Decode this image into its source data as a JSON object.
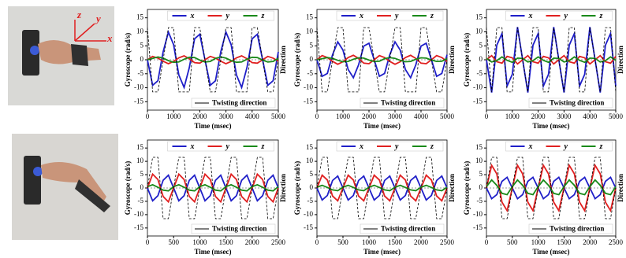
{
  "photo_labels": [
    "z",
    "y",
    "x"
  ],
  "chart_data": [
    {
      "type": "line",
      "xlabel": "Time (msec)",
      "ylabel": "Gyroscope (rad/s)",
      "y2label": "Direction",
      "x": [
        0,
        200,
        400,
        600,
        800,
        1000,
        1200,
        1400,
        1600,
        1800,
        2000,
        2200,
        2400,
        2600,
        2800,
        3000,
        3200,
        3400,
        3600,
        3800,
        4000,
        4200,
        4400,
        4600,
        4800,
        5000
      ],
      "xlim": [
        0,
        5000
      ],
      "xticks": [
        0,
        1000,
        2000,
        3000,
        4000,
        5000
      ],
      "ylim": [
        -18,
        18
      ],
      "yticks": [
        -15,
        -10,
        -5,
        0,
        5,
        10,
        15
      ],
      "series": [
        {
          "name": "x",
          "color": "#1f1fc8",
          "values": [
            0,
            -9.1,
            -7.5,
            2.8,
            9.9,
            5.4,
            -5.4,
            -9.9,
            -2.8,
            7.5,
            9.1,
            0,
            -9.1,
            -7.5,
            2.8,
            9.9,
            5.4,
            -5.4,
            -9.9,
            -2.8,
            7.5,
            9.1,
            0,
            -9.1,
            -7.5,
            2.8
          ]
        },
        {
          "name": "y",
          "color": "#e02020",
          "values": [
            0,
            1.2,
            0.6,
            -0.5,
            -1.4,
            -0.6,
            0.7,
            1.4,
            0.4,
            -1,
            -1.2,
            0,
            1.2,
            0.6,
            -0.5,
            -1.4,
            -0.6,
            0.7,
            1.4,
            0.4,
            -1,
            -1.2,
            0,
            1.2,
            0.6,
            -0.5
          ]
        },
        {
          "name": "z",
          "color": "#1a8a1a",
          "values": [
            0,
            0.5,
            1,
            0.6,
            -0.3,
            -0.9,
            -0.8,
            0.2,
            0.9,
            0.8,
            -0.1,
            -0.8,
            -0.6,
            0.5,
            1,
            0.6,
            -0.3,
            -0.9,
            -0.8,
            0.2,
            0.9,
            0.8,
            -0.1,
            -0.8,
            -0.6,
            0.5
          ]
        },
        {
          "name": "Twisting direction",
          "color": "#000000",
          "dashed": true,
          "values": [
            11.5,
            -11.5,
            -11.5,
            0,
            11.5,
            11.5,
            -11.5,
            -11.5,
            -11.5,
            11.5,
            11.5,
            0,
            -11.5,
            -11.5,
            0,
            11.5,
            11.5,
            -11.5,
            -11.5,
            -11.5,
            11.5,
            11.5,
            0,
            -11.5,
            -11.5,
            0
          ]
        }
      ]
    },
    {
      "type": "line",
      "xlabel": "Time (msec)",
      "ylabel": "Gyroscope (rad/s)",
      "y2label": "Direction",
      "x": [
        0,
        200,
        400,
        600,
        800,
        1000,
        1200,
        1400,
        1600,
        1800,
        2000,
        2200,
        2400,
        2600,
        2800,
        3000,
        3200,
        3400,
        3600,
        3800,
        4000,
        4200,
        4400,
        4600,
        4800,
        5000
      ],
      "xlim": [
        0,
        5000
      ],
      "xticks": [
        0,
        1000,
        2000,
        3000,
        4000,
        5000
      ],
      "ylim": [
        -18,
        18
      ],
      "yticks": [
        -15,
        -10,
        -5,
        0,
        5,
        10,
        15
      ],
      "series": [
        {
          "name": "x",
          "color": "#1f1fc8",
          "values": [
            0,
            -5.9,
            -4.9,
            1.8,
            6.4,
            3.5,
            -3.5,
            -6.4,
            -1.8,
            4.9,
            5.9,
            0,
            -5.9,
            -4.9,
            1.8,
            6.4,
            3.5,
            -3.5,
            -6.4,
            -1.8,
            4.9,
            5.9,
            0,
            -5.9,
            -4.9,
            1.8
          ]
        },
        {
          "name": "y",
          "color": "#e02020",
          "values": [
            0,
            1.5,
            0.8,
            -0.6,
            -1.6,
            -0.7,
            0.8,
            1.6,
            0.5,
            -1.2,
            -1.4,
            0,
            1.5,
            0.8,
            -0.6,
            -1.6,
            -0.7,
            0.8,
            1.6,
            0.5,
            -1.2,
            -1.4,
            0,
            1.5,
            0.8,
            -0.6
          ]
        },
        {
          "name": "z",
          "color": "#1a8a1a",
          "values": [
            0,
            0.4,
            0.8,
            0.5,
            -0.2,
            -0.7,
            -0.6,
            0.2,
            0.7,
            0.6,
            -0.1,
            -0.6,
            -0.5,
            0.4,
            0.8,
            0.5,
            -0.2,
            -0.7,
            -0.6,
            0.2,
            0.7,
            0.6,
            -0.1,
            -0.6,
            -0.5,
            0.4
          ]
        },
        {
          "name": "Twisting direction",
          "color": "#000000",
          "dashed": true,
          "values": [
            11.5,
            -11.5,
            -11.5,
            0,
            11.5,
            11.5,
            -11.5,
            -11.5,
            -11.5,
            11.5,
            11.5,
            0,
            -11.5,
            -11.5,
            0,
            11.5,
            11.5,
            -11.5,
            -11.5,
            -11.5,
            11.5,
            11.5,
            0,
            -11.5,
            -11.5,
            0
          ]
        }
      ]
    },
    {
      "type": "line",
      "xlabel": "Time (msec)",
      "ylabel": "Gyroscope (rad/s)",
      "y2label": "Direction",
      "x": [
        0,
        200,
        400,
        600,
        800,
        1000,
        1200,
        1400,
        1600,
        1800,
        2000,
        2200,
        2400,
        2600,
        2800,
        3000,
        3200,
        3400,
        3600,
        3800,
        4000,
        4200,
        4400,
        4600,
        4800,
        5000
      ],
      "xlim": [
        0,
        5000
      ],
      "xticks": [
        0,
        1000,
        2000,
        3000,
        4000,
        5000
      ],
      "ylim": [
        -18,
        18
      ],
      "yticks": [
        -15,
        -10,
        -5,
        0,
        5,
        10,
        15
      ],
      "series": [
        {
          "name": "x",
          "color": "#1f1fc8",
          "values": [
            0,
            -11.7,
            5.2,
            9.4,
            -9.4,
            -5.2,
            11.7,
            0,
            -11.7,
            5.2,
            9.4,
            -9.4,
            -5.2,
            11.7,
            0,
            -11.7,
            5.2,
            9.4,
            -9.4,
            -5.2,
            11.7,
            0,
            -11.7,
            5.2,
            9.4,
            -9.4
          ]
        },
        {
          "name": "y",
          "color": "#e02020",
          "values": [
            0,
            1.5,
            -0.7,
            -1.2,
            1.2,
            0.7,
            -1.5,
            0,
            1.5,
            -0.7,
            -1.2,
            1.2,
            0.7,
            -1.5,
            0,
            1.5,
            -0.7,
            -1.2,
            1.2,
            0.7,
            -1.5,
            0,
            1.5,
            -0.7,
            -1.2,
            1.2
          ]
        },
        {
          "name": "z",
          "color": "#1a8a1a",
          "values": [
            0.5,
            -0.8,
            -0.3,
            1,
            -0.2,
            -0.9,
            0.6,
            0.5,
            -0.8,
            -0.3,
            1,
            -0.2,
            -0.9,
            0.6,
            0.5,
            -0.8,
            -0.3,
            1,
            -0.2,
            -0.9,
            0.6,
            0.5,
            -0.8,
            -0.3,
            1,
            -0.2
          ]
        },
        {
          "name": "Twisting direction",
          "color": "#000000",
          "dashed": true,
          "values": [
            11.5,
            -11.5,
            11.5,
            11.5,
            -11.5,
            -11.5,
            11.5,
            0,
            -11.5,
            11.5,
            11.5,
            -11.5,
            -11.5,
            11.5,
            0,
            -11.5,
            11.5,
            11.5,
            -11.5,
            -11.5,
            11.5,
            0,
            -11.5,
            11.5,
            11.5,
            -11.5
          ]
        }
      ]
    },
    {
      "type": "line",
      "xlabel": "Time (msec)",
      "ylabel": "Gyroscope (rad/s)",
      "y2label": "Direction",
      "x": [
        0,
        100,
        200,
        300,
        400,
        500,
        600,
        700,
        800,
        900,
        1000,
        1100,
        1200,
        1300,
        1400,
        1500,
        1600,
        1700,
        1800,
        1900,
        2000,
        2100,
        2200,
        2300,
        2400,
        2500
      ],
      "xlim": [
        0,
        2500
      ],
      "xticks": [
        0,
        500,
        1000,
        1500,
        2000,
        2500
      ],
      "ylim": [
        -18,
        18
      ],
      "yticks": [
        -15,
        -10,
        -5,
        0,
        5,
        10,
        15
      ],
      "series": [
        {
          "name": "x",
          "color": "#1f1fc8",
          "values": [
            0,
            -4.8,
            -2.9,
            2.9,
            4.8,
            0,
            -4.8,
            -2.9,
            2.9,
            4.8,
            0,
            -4.8,
            -2.9,
            2.9,
            4.8,
            0,
            -4.8,
            -2.9,
            2.9,
            4.8,
            0,
            -4.8,
            -2.9,
            2.9,
            4.8,
            0
          ]
        },
        {
          "name": "y",
          "color": "#e02020",
          "values": [
            0,
            5.2,
            3.2,
            -3.2,
            -5.2,
            0,
            5.2,
            3.2,
            -3.2,
            -5.2,
            0,
            5.2,
            3.2,
            -3.2,
            -5.2,
            0,
            5.2,
            3.2,
            -3.2,
            -5.2,
            0,
            5.2,
            3.2,
            -3.2,
            -5.2,
            0
          ]
        },
        {
          "name": "z",
          "color": "#1a8a1a",
          "values": [
            0.5,
            1.2,
            0.3,
            -0.8,
            -1.1,
            0.5,
            1.2,
            0.3,
            -0.8,
            -1.1,
            0.5,
            1.2,
            0.3,
            -0.8,
            -1.1,
            0.5,
            1.2,
            0.3,
            -0.8,
            -1.1,
            0.5,
            1.2,
            0.3,
            -0.8,
            -1.1,
            0.5
          ]
        },
        {
          "name": "Twisting direction",
          "color": "#000000",
          "dashed": true,
          "values": [
            0,
            11.5,
            11.5,
            -11.5,
            -11.5,
            0,
            11.5,
            11.5,
            -11.5,
            -11.5,
            0,
            11.5,
            11.5,
            -11.5,
            -11.5,
            0,
            11.5,
            11.5,
            -11.5,
            -11.5,
            0,
            11.5,
            11.5,
            -11.5,
            -11.5,
            0
          ]
        }
      ]
    },
    {
      "type": "line",
      "xlabel": "Time (msec)",
      "ylabel": "Gyroscope (rad/s)",
      "y2label": "Direction",
      "x": [
        0,
        100,
        200,
        300,
        400,
        500,
        600,
        700,
        800,
        900,
        1000,
        1100,
        1200,
        1300,
        1400,
        1500,
        1600,
        1700,
        1800,
        1900,
        2000,
        2100,
        2200,
        2300,
        2400,
        2500
      ],
      "xlim": [
        0,
        2500
      ],
      "xticks": [
        0,
        500,
        1000,
        1500,
        2000,
        2500
      ],
      "ylim": [
        -18,
        18
      ],
      "yticks": [
        -15,
        -10,
        -5,
        0,
        5,
        10,
        15
      ],
      "series": [
        {
          "name": "x",
          "color": "#1f1fc8",
          "values": [
            0,
            -4.5,
            -2.8,
            2.8,
            4.5,
            0,
            -4.5,
            -2.8,
            2.8,
            4.5,
            0,
            -4.5,
            -2.8,
            2.8,
            4.5,
            0,
            -4.5,
            -2.8,
            2.8,
            4.5,
            0,
            -4.5,
            -2.8,
            2.8,
            4.5,
            0
          ]
        },
        {
          "name": "y",
          "color": "#e02020",
          "values": [
            0,
            4.8,
            3,
            -3,
            -4.8,
            0,
            4.8,
            3,
            -3,
            -4.8,
            0,
            4.8,
            3,
            -3,
            -4.8,
            0,
            4.8,
            3,
            -3,
            -4.8,
            0,
            4.8,
            3,
            -3,
            -4.8,
            0
          ]
        },
        {
          "name": "z",
          "color": "#1a8a1a",
          "values": [
            0.3,
            1,
            0.2,
            -0.7,
            -1,
            0.3,
            1,
            0.2,
            -0.7,
            -1,
            0.3,
            1,
            0.2,
            -0.7,
            -1,
            0.3,
            1,
            0.2,
            -0.7,
            -1,
            0.3,
            1,
            0.2,
            -0.7,
            -1,
            0.3
          ]
        },
        {
          "name": "Twisting direction",
          "color": "#000000",
          "dashed": true,
          "values": [
            0,
            11.5,
            11.5,
            -11.5,
            -11.5,
            0,
            11.5,
            11.5,
            -11.5,
            -11.5,
            0,
            11.5,
            11.5,
            -11.5,
            -11.5,
            0,
            11.5,
            11.5,
            -11.5,
            -11.5,
            0,
            11.5,
            11.5,
            -11.5,
            -11.5,
            0
          ]
        }
      ]
    },
    {
      "type": "line",
      "xlabel": "Time (msec)",
      "ylabel": "Gyroscope (rad/s)",
      "y2label": "Direction",
      "x": [
        0,
        100,
        200,
        300,
        400,
        500,
        600,
        700,
        800,
        900,
        1000,
        1100,
        1200,
        1300,
        1400,
        1500,
        1600,
        1700,
        1800,
        1900,
        2000,
        2100,
        2200,
        2300,
        2400,
        2500
      ],
      "xlim": [
        0,
        2500
      ],
      "xticks": [
        0,
        500,
        1000,
        1500,
        2000,
        2500
      ],
      "ylim": [
        -18,
        18
      ],
      "yticks": [
        -15,
        -10,
        -5,
        0,
        5,
        10,
        15
      ],
      "series": [
        {
          "name": "x",
          "color": "#1f1fc8",
          "values": [
            0,
            -4,
            -2.5,
            2.5,
            4,
            0,
            -4,
            -2.5,
            2.5,
            4,
            0,
            -4,
            -2.5,
            2.5,
            4,
            0,
            -4,
            -2.5,
            2.5,
            4,
            0,
            -4,
            -2.5,
            2.5,
            4,
            0
          ]
        },
        {
          "name": "y",
          "color": "#e02020",
          "values": [
            0,
            8.5,
            5.3,
            -5.3,
            -8.5,
            0,
            8.5,
            5.3,
            -5.3,
            -8.5,
            0,
            8.5,
            5.3,
            -5.3,
            -8.5,
            0,
            8.5,
            5.3,
            -5.3,
            -8.5,
            0,
            8.5,
            5.3,
            -5.3,
            -8.5,
            0
          ]
        },
        {
          "name": "z",
          "color": "#1a8a1a",
          "values": [
            0.5,
            3,
            1,
            -2,
            -2.5,
            0.5,
            3,
            1,
            -2,
            -2.5,
            0.5,
            3,
            1,
            -2,
            -2.5,
            0.5,
            3,
            1,
            -2,
            -2.5,
            0.5,
            3,
            1,
            -2,
            -2.5,
            0.5
          ]
        },
        {
          "name": "Twisting direction",
          "color": "#000000",
          "dashed": true,
          "values": [
            0,
            11.5,
            11.5,
            -11.5,
            -11.5,
            0,
            11.5,
            11.5,
            -11.5,
            -11.5,
            0,
            11.5,
            11.5,
            -11.5,
            -11.5,
            0,
            11.5,
            11.5,
            -11.5,
            -11.5,
            0,
            11.5,
            11.5,
            -11.5,
            -11.5,
            0
          ]
        }
      ]
    }
  ]
}
